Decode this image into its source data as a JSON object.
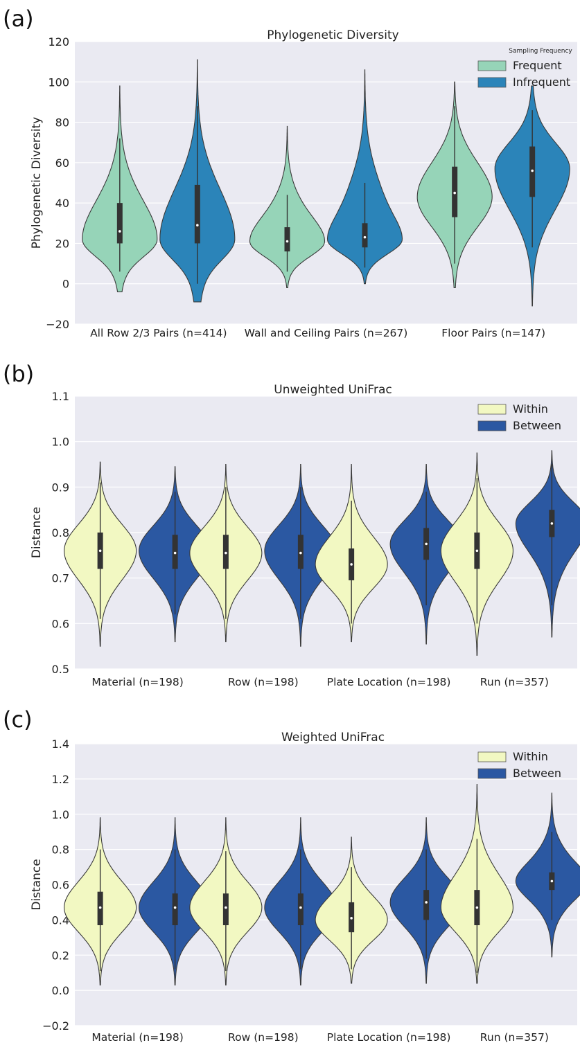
{
  "chart_data": [
    {
      "panel_label": "(a)",
      "type": "violin",
      "title": "Phylogenetic Diversity",
      "xlabel": "",
      "ylabel": "Phylogenetic Diversity",
      "ylim": [
        -20,
        120
      ],
      "yticks": [
        -20,
        0,
        20,
        40,
        60,
        80,
        100,
        120
      ],
      "ytick_labels": [
        "−20",
        "0",
        "20",
        "40",
        "60",
        "80",
        "100",
        "120"
      ],
      "grid": true,
      "legend": {
        "title": "Sampling Frequency",
        "position": "top-right",
        "entries": [
          "Frequent",
          "Infrequent"
        ]
      },
      "categories": [
        "All Row 2/3 Pairs (n=414)",
        "Wall and Ceiling Pairs (n=267)",
        "Floor Pairs (n=147)"
      ],
      "series": [
        {
          "name": "Frequent",
          "color": "#96d4b8",
          "median": [
            26,
            21,
            45
          ],
          "q1": [
            20,
            16,
            33
          ],
          "q3": [
            40,
            28,
            58
          ],
          "whisker_low": [
            6,
            6,
            10
          ],
          "whisker_high": [
            72,
            44,
            88
          ],
          "min": [
            -4,
            -2,
            -2
          ],
          "max": [
            98,
            78,
            100
          ],
          "mode": [
            22,
            21,
            43
          ]
        },
        {
          "name": "Infrequent",
          "color": "#2b84b9",
          "median": [
            29,
            23,
            56
          ],
          "q1": [
            20,
            18,
            43
          ],
          "q3": [
            49,
            30,
            68
          ],
          "whisker_low": [
            0,
            8,
            18
          ],
          "whisker_high": [
            88,
            50,
            86
          ],
          "min": [
            -9,
            0,
            -11
          ],
          "max": [
            111,
            106,
            98
          ],
          "mode": [
            22,
            22,
            57
          ]
        }
      ]
    },
    {
      "panel_label": "(b)",
      "type": "violin",
      "title": "Unweighted UniFrac",
      "xlabel": "",
      "ylabel": "Distance",
      "ylim": [
        0.5,
        1.1
      ],
      "yticks": [
        0.5,
        0.6,
        0.7,
        0.8,
        0.9,
        1.0,
        1.1
      ],
      "ytick_labels": [
        "0.5",
        "0.6",
        "0.7",
        "0.8",
        "0.9",
        "1.0",
        "1.1"
      ],
      "grid": true,
      "legend": {
        "title": "",
        "position": "top-right",
        "entries": [
          "Within",
          "Between"
        ]
      },
      "categories": [
        "Material (n=198)",
        "Row (n=198)",
        "Plate Location (n=198)",
        "Run (n=357)"
      ],
      "series": [
        {
          "name": "Within",
          "color": "#f2f8c2",
          "median": [
            0.76,
            0.755,
            0.73,
            0.76
          ],
          "q1": [
            0.72,
            0.72,
            0.695,
            0.72
          ],
          "q3": [
            0.8,
            0.795,
            0.765,
            0.8
          ],
          "whisker_low": [
            0.61,
            0.61,
            0.6,
            0.6
          ],
          "whisker_high": [
            0.91,
            0.9,
            0.87,
            0.92
          ],
          "min": [
            0.55,
            0.56,
            0.56,
            0.53
          ],
          "max": [
            0.955,
            0.95,
            0.95,
            0.975
          ],
          "mode": [
            0.76,
            0.755,
            0.73,
            0.76
          ]
        },
        {
          "name": "Between",
          "color": "#2b58a2",
          "median": [
            0.755,
            0.755,
            0.775,
            0.82
          ],
          "q1": [
            0.72,
            0.72,
            0.74,
            0.79
          ],
          "q3": [
            0.795,
            0.795,
            0.81,
            0.85
          ],
          "whisker_low": [
            0.62,
            0.61,
            0.64,
            0.64
          ],
          "whisker_high": [
            0.89,
            0.9,
            0.89,
            0.95
          ],
          "min": [
            0.56,
            0.55,
            0.555,
            0.57
          ],
          "max": [
            0.945,
            0.95,
            0.95,
            0.98
          ],
          "mode": [
            0.76,
            0.76,
            0.775,
            0.82
          ]
        }
      ]
    },
    {
      "panel_label": "(c)",
      "type": "violin",
      "title": "Weighted UniFrac",
      "xlabel": "",
      "ylabel": "Distance",
      "ylim": [
        -0.2,
        1.4
      ],
      "yticks": [
        -0.2,
        0.0,
        0.2,
        0.4,
        0.6,
        0.8,
        1.0,
        1.2,
        1.4
      ],
      "ytick_labels": [
        "−0.2",
        "0.0",
        "0.2",
        "0.4",
        "0.6",
        "0.8",
        "1.0",
        "1.2",
        "1.4"
      ],
      "grid": true,
      "legend": {
        "title": "",
        "position": "top-right",
        "entries": [
          "Within",
          "Between"
        ]
      },
      "categories": [
        "Material (n=198)",
        "Row (n=198)",
        "Plate Location (n=198)",
        "Run (n=357)"
      ],
      "series": [
        {
          "name": "Within",
          "color": "#f2f8c2",
          "median": [
            0.47,
            0.47,
            0.41,
            0.47
          ],
          "q1": [
            0.37,
            0.37,
            0.33,
            0.37
          ],
          "q3": [
            0.56,
            0.55,
            0.5,
            0.57
          ],
          "whisker_low": [
            0.11,
            0.11,
            0.12,
            0.1
          ],
          "whisker_high": [
            0.8,
            0.79,
            0.7,
            0.86
          ],
          "min": [
            0.03,
            0.03,
            0.04,
            0.04
          ],
          "max": [
            0.98,
            0.98,
            0.87,
            1.17
          ],
          "mode": [
            0.47,
            0.47,
            0.4,
            0.47
          ]
        },
        {
          "name": "Between",
          "color": "#2b58a2",
          "median": [
            0.47,
            0.47,
            0.5,
            0.62
          ],
          "q1": [
            0.37,
            0.37,
            0.4,
            0.57
          ],
          "q3": [
            0.55,
            0.55,
            0.57,
            0.67
          ],
          "whisker_low": [
            0.12,
            0.12,
            0.18,
            0.4
          ],
          "whisker_high": [
            0.8,
            0.8,
            0.8,
            0.9
          ],
          "min": [
            0.03,
            0.03,
            0.04,
            0.19
          ],
          "max": [
            0.98,
            0.98,
            0.98,
            1.12
          ],
          "mode": [
            0.47,
            0.47,
            0.5,
            0.62
          ]
        }
      ]
    }
  ]
}
